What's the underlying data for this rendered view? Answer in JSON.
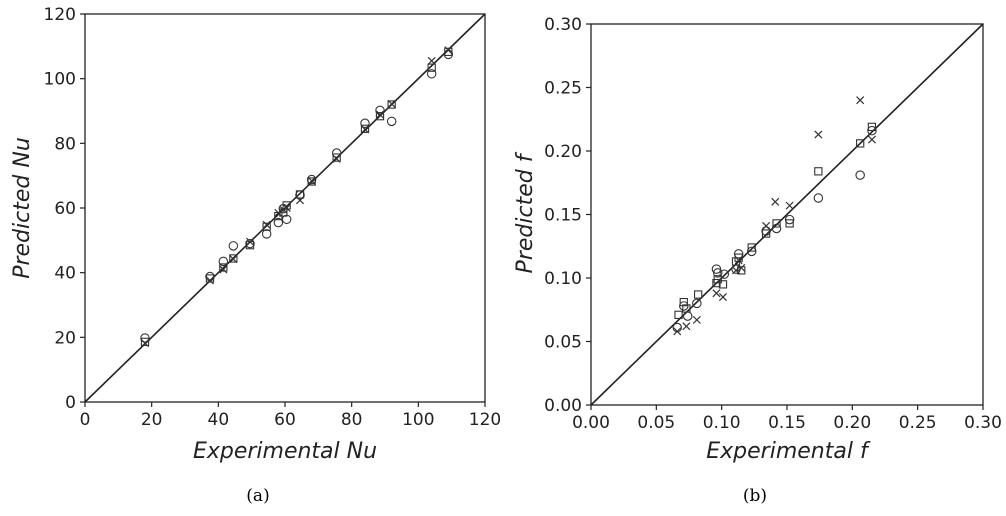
{
  "chart_data": [
    {
      "type": "scatter",
      "panel_caption": "(a)",
      "xlabel": "Experimental Nu",
      "ylabel": "Predicted Nu",
      "xlim": [
        0,
        120
      ],
      "ylim": [
        0,
        120
      ],
      "x_ticks": [
        "0",
        "20",
        "40",
        "60",
        "80",
        "100",
        "120"
      ],
      "y_ticks": [
        "0",
        "20",
        "40",
        "60",
        "80",
        "100",
        "120"
      ],
      "reference_line": "y = x",
      "grid": false,
      "series": [
        {
          "marker": "circle",
          "points": [
            [
              18.0,
              19.8
            ],
            [
              37.5,
              38.8
            ],
            [
              41.5,
              43.5
            ],
            [
              44.5,
              48.3
            ],
            [
              49.5,
              49.0
            ],
            [
              54.5,
              52.0
            ],
            [
              58.0,
              55.5
            ],
            [
              59.5,
              59.8
            ],
            [
              60.5,
              56.5
            ],
            [
              64.5,
              64.0
            ],
            [
              68.0,
              68.8
            ],
            [
              75.5,
              77.0
            ],
            [
              84.0,
              86.2
            ],
            [
              88.5,
              90.2
            ],
            [
              92.0,
              86.8
            ],
            [
              104.0,
              101.5
            ],
            [
              109.0,
              107.5
            ]
          ]
        },
        {
          "marker": "square",
          "points": [
            [
              18.0,
              18.6
            ],
            [
              37.5,
              38.2
            ],
            [
              41.5,
              41.6
            ],
            [
              44.5,
              44.4
            ],
            [
              49.5,
              48.5
            ],
            [
              54.5,
              54.2
            ],
            [
              58.0,
              57.5
            ],
            [
              59.5,
              58.6
            ],
            [
              60.5,
              60.8
            ],
            [
              64.5,
              64.2
            ],
            [
              68.0,
              68.2
            ],
            [
              75.5,
              75.6
            ],
            [
              84.0,
              84.5
            ],
            [
              88.5,
              88.4
            ],
            [
              92.0,
              92.0
            ],
            [
              104.0,
              103.4
            ],
            [
              109.0,
              108.3
            ]
          ]
        },
        {
          "marker": "x",
          "points": [
            [
              18.0,
              18.2
            ],
            [
              37.5,
              37.6
            ],
            [
              41.5,
              41.0
            ],
            [
              44.5,
              44.2
            ],
            [
              49.5,
              49.6
            ],
            [
              54.5,
              54.8
            ],
            [
              58.0,
              58.5
            ],
            [
              59.5,
              59.5
            ],
            [
              60.5,
              60.0
            ],
            [
              64.5,
              62.4
            ],
            [
              68.0,
              68.4
            ],
            [
              75.5,
              75.2
            ],
            [
              84.0,
              84.3
            ],
            [
              88.5,
              88.9
            ],
            [
              92.0,
              92.2
            ],
            [
              104.0,
              105.5
            ],
            [
              109.0,
              108.8
            ]
          ]
        }
      ]
    },
    {
      "type": "scatter",
      "panel_caption": "(b)",
      "xlabel": "Experimental f",
      "ylabel": "Predicted f",
      "xlim": [
        0,
        0.3
      ],
      "ylim": [
        0,
        0.3
      ],
      "x_ticks": [
        "0.00",
        "0.05",
        "0.10",
        "0.15",
        "0.20",
        "0.25",
        "0.30"
      ],
      "y_ticks": [
        "0.00",
        "0.05",
        "0.10",
        "0.15",
        "0.20",
        "0.25",
        "0.30"
      ],
      "reference_line": "y = x",
      "grid": false,
      "series": [
        {
          "marker": "circle",
          "points": [
            [
              0.066,
              0.061
            ],
            [
              0.071,
              0.078
            ],
            [
              0.074,
              0.07
            ],
            [
              0.081,
              0.08
            ],
            [
              0.096,
              0.107
            ],
            [
              0.097,
              0.104
            ],
            [
              0.102,
              0.103
            ],
            [
              0.111,
              0.107
            ],
            [
              0.113,
              0.119
            ],
            [
              0.123,
              0.121
            ],
            [
              0.134,
              0.137
            ],
            [
              0.142,
              0.139
            ],
            [
              0.152,
              0.146
            ],
            [
              0.174,
              0.163
            ],
            [
              0.206,
              0.181
            ],
            [
              0.215,
              0.216
            ]
          ]
        },
        {
          "marker": "square",
          "points": [
            [
              0.067,
              0.071
            ],
            [
              0.071,
              0.081
            ],
            [
              0.073,
              0.076
            ],
            [
              0.082,
              0.087
            ],
            [
              0.096,
              0.096
            ],
            [
              0.097,
              0.099
            ],
            [
              0.101,
              0.095
            ],
            [
              0.111,
              0.113
            ],
            [
              0.113,
              0.116
            ],
            [
              0.115,
              0.106
            ],
            [
              0.123,
              0.124
            ],
            [
              0.134,
              0.135
            ],
            [
              0.142,
              0.143
            ],
            [
              0.152,
              0.143
            ],
            [
              0.174,
              0.184
            ],
            [
              0.206,
              0.206
            ],
            [
              0.215,
              0.219
            ]
          ]
        },
        {
          "marker": "x",
          "points": [
            [
              0.066,
              0.058
            ],
            [
              0.073,
              0.062
            ],
            [
              0.081,
              0.067
            ],
            [
              0.096,
              0.088
            ],
            [
              0.101,
              0.085
            ],
            [
              0.111,
              0.106
            ],
            [
              0.113,
              0.114
            ],
            [
              0.115,
              0.108
            ],
            [
              0.134,
              0.141
            ],
            [
              0.141,
              0.16
            ],
            [
              0.152,
              0.157
            ],
            [
              0.174,
              0.213
            ],
            [
              0.206,
              0.24
            ],
            [
              0.215,
              0.209
            ]
          ]
        }
      ]
    }
  ]
}
